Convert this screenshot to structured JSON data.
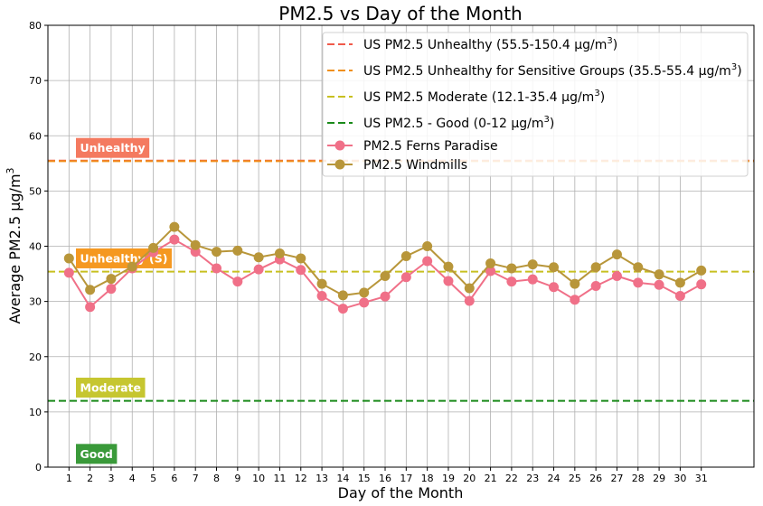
{
  "chart_data": {
    "type": "line",
    "title": "PM2.5 vs Day of the Month",
    "xlabel": "Day of the Month",
    "ylabel": "Average PM2.5 μg/m",
    "ylabel_sup": "3",
    "ylim": [
      0,
      80
    ],
    "yticks": [
      0,
      10,
      20,
      30,
      40,
      50,
      60,
      70,
      80
    ],
    "x": [
      1,
      2,
      3,
      4,
      5,
      6,
      7,
      8,
      9,
      10,
      11,
      12,
      13,
      14,
      15,
      16,
      17,
      18,
      19,
      20,
      21,
      22,
      23,
      24,
      25,
      26,
      27,
      28,
      29,
      30,
      31
    ],
    "grid": true,
    "legend_position": "top-right",
    "series": [
      {
        "name": "PM2.5 Ferns Paradise",
        "color": "#f07088",
        "values": [
          35.2,
          29.0,
          32.3,
          36.0,
          38.9,
          41.2,
          39.0,
          36.0,
          33.6,
          35.8,
          37.6,
          35.7,
          31.0,
          28.7,
          29.8,
          30.9,
          34.4,
          37.3,
          33.7,
          30.1,
          35.5,
          33.6,
          34.0,
          32.6,
          30.3,
          32.8,
          34.6,
          33.4,
          33.0,
          31.0,
          33.1
        ]
      },
      {
        "name": "PM2.5 Windmills",
        "color": "#b8963a",
        "values": [
          37.8,
          32.1,
          34.1,
          36.3,
          39.7,
          43.5,
          40.2,
          39.0,
          39.2,
          38.0,
          38.7,
          37.8,
          33.2,
          31.1,
          31.6,
          34.6,
          38.2,
          40.0,
          36.3,
          32.4,
          36.9,
          36.0,
          36.7,
          36.2,
          33.2,
          36.2,
          38.5,
          36.2,
          34.9,
          33.4,
          35.6
        ]
      }
    ],
    "thresholds": [
      {
        "name": "US PM2.5 Unhealthy (55.5-150.4 μg/m",
        "sup": "3",
        "suffix": ")",
        "value": 55.5,
        "color": "#f05a4a"
      },
      {
        "name": "US PM2.5 Unhealthy for Sensitive Groups (35.5-55.4 μg/m",
        "sup": "3",
        "suffix": ")",
        "value": 55.4,
        "color": "#f0901c"
      },
      {
        "name": "US PM2.5 Moderate (12.1-35.4 μg/m",
        "sup": "3",
        "suffix": ")",
        "value": 35.4,
        "color": "#c8c020"
      },
      {
        "name": "US PM2.5 - Good (0-12 μg/m",
        "sup": "3",
        "suffix": ")",
        "value": 12.0,
        "color": "#1a8a1a"
      }
    ],
    "annotations": [
      {
        "text": "Unhealthy",
        "y": 57.8,
        "color": "#f47a60"
      },
      {
        "text": "Unhealthy (S)",
        "y": 37.8,
        "color": "#f59820"
      },
      {
        "text": "Moderate",
        "y": 14.4,
        "color": "#c6c630"
      },
      {
        "text": "Good",
        "y": 2.4,
        "color": "#3a9a3a"
      }
    ]
  }
}
